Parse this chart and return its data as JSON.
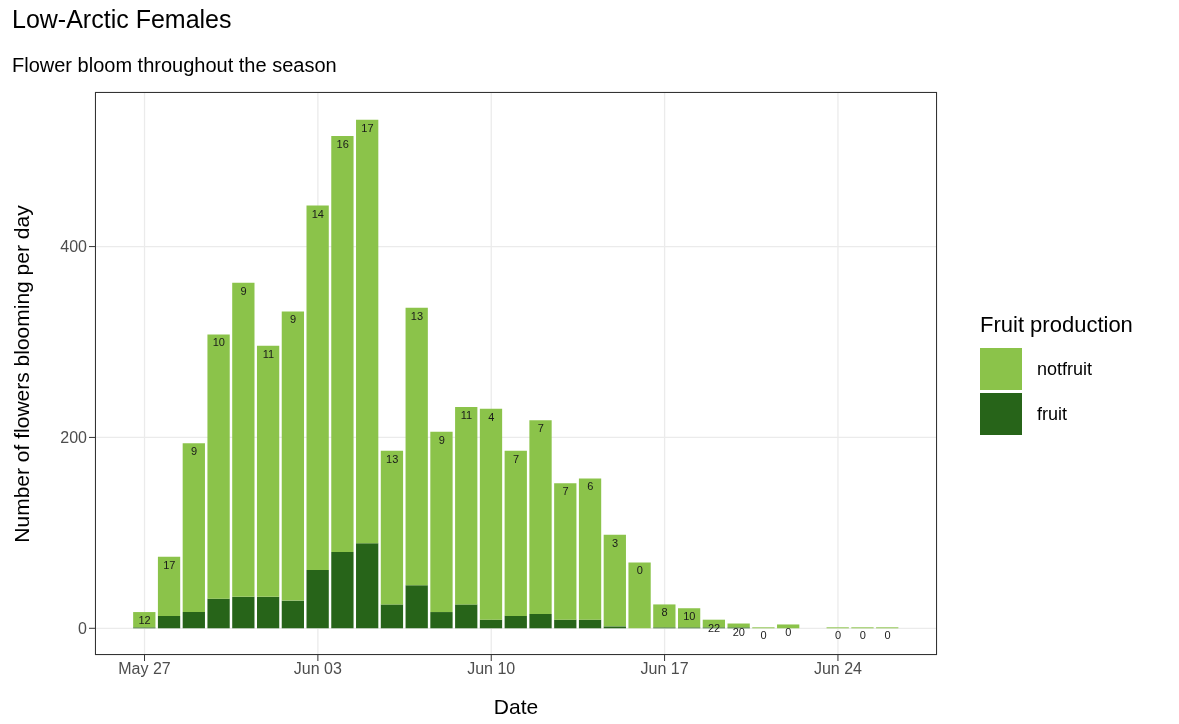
{
  "chart_data": {
    "type": "bar",
    "title": "Low-Arctic Females",
    "subtitle": "Flower bloom throughout the season",
    "xlabel": "Date",
    "ylabel": "Number of flowers blooming per day",
    "legend_title": "Fruit production",
    "legend": "right",
    "grid": true,
    "stacked": true,
    "x": [
      "--05-27",
      "--05-28",
      "--05-29",
      "--05-30",
      "--05-31",
      "--06-01",
      "--06-02",
      "--06-03",
      "--06-04",
      "--06-05",
      "--06-06",
      "--06-07",
      "--06-08",
      "--06-09",
      "--06-10",
      "--06-11",
      "--06-12",
      "--06-13",
      "--06-14",
      "--06-15",
      "--06-16",
      "--06-17",
      "--06-18",
      "--06-19",
      "--06-20",
      "--06-21",
      "--06-22",
      "--06-23",
      "--06-24",
      "--06-25",
      "--06-26"
    ],
    "xlim": [
      "--05-25",
      "--06-28"
    ],
    "xticks": [
      {
        "value": "--05-27",
        "label": "May 27"
      },
      {
        "value": "--06-03",
        "label": "Jun 03"
      },
      {
        "value": "--06-10",
        "label": "Jun 10"
      },
      {
        "value": "--06-17",
        "label": "Jun 17"
      },
      {
        "value": "--06-24",
        "label": "Jun 24"
      }
    ],
    "ylim": [
      -28,
      562
    ],
    "yticks": [
      0,
      200,
      400
    ],
    "series": [
      {
        "name": "fruit",
        "color": "#276419",
        "values": [
          1,
          13,
          17,
          31,
          33,
          33,
          29,
          61,
          80,
          89,
          25,
          45,
          17,
          25,
          9,
          13,
          15,
          9,
          9,
          2,
          0,
          1,
          1,
          1,
          1,
          0,
          0,
          null,
          0,
          0,
          0
        ]
      },
      {
        "name": "notfruit",
        "color": "#8bc34a",
        "values": [
          16,
          62,
          177,
          277,
          329,
          263,
          303,
          382,
          436,
          444,
          161,
          291,
          189,
          207,
          221,
          173,
          203,
          143,
          148,
          96,
          69,
          24,
          20,
          8,
          4,
          1,
          4,
          null,
          1,
          1,
          1
        ]
      }
    ],
    "annotations": [
      {
        "text": "12",
        "x": "--05-27",
        "y": 17
      },
      {
        "text": "17",
        "x": "--05-28",
        "y": 75
      },
      {
        "text": "9",
        "x": "--05-29",
        "y": 194
      },
      {
        "text": "10",
        "x": "--05-30",
        "y": 308
      },
      {
        "text": "9",
        "x": "--05-31",
        "y": 362
      },
      {
        "text": "11",
        "x": "--06-01",
        "y": 296
      },
      {
        "text": "9",
        "x": "--06-02",
        "y": 332
      },
      {
        "text": "14",
        "x": "--06-03",
        "y": 443
      },
      {
        "text": "16",
        "x": "--06-04",
        "y": 516
      },
      {
        "text": "17",
        "x": "--06-05",
        "y": 533
      },
      {
        "text": "13",
        "x": "--06-06",
        "y": 186
      },
      {
        "text": "13",
        "x": "--06-07",
        "y": 336
      },
      {
        "text": "9",
        "x": "--06-08",
        "y": 206
      },
      {
        "text": "11",
        "x": "--06-09",
        "y": 232
      },
      {
        "text": "4",
        "x": "--06-10",
        "y": 230
      },
      {
        "text": "7",
        "x": "--06-11",
        "y": 186
      },
      {
        "text": "7",
        "x": "--06-12",
        "y": 218
      },
      {
        "text": "7",
        "x": "--06-13",
        "y": 152
      },
      {
        "text": "6",
        "x": "--06-14",
        "y": 157
      },
      {
        "text": "3",
        "x": "--06-15",
        "y": 98
      },
      {
        "text": "0",
        "x": "--06-16",
        "y": 69
      },
      {
        "text": "8",
        "x": "--06-17",
        "y": 25
      },
      {
        "text": "10",
        "x": "--06-18",
        "y": 21
      },
      {
        "text": "22",
        "x": "--06-19",
        "y": 9
      },
      {
        "text": "20",
        "x": "--06-20",
        "y": 5
      },
      {
        "text": "0",
        "x": "--06-21",
        "y": 1
      },
      {
        "text": "0",
        "x": "--06-22",
        "y": 4
      },
      {
        "text": "0",
        "x": "--06-24",
        "y": 1
      },
      {
        "text": "0",
        "x": "--06-25",
        "y": 1
      },
      {
        "text": "0",
        "x": "--06-26",
        "y": 1
      }
    ]
  }
}
